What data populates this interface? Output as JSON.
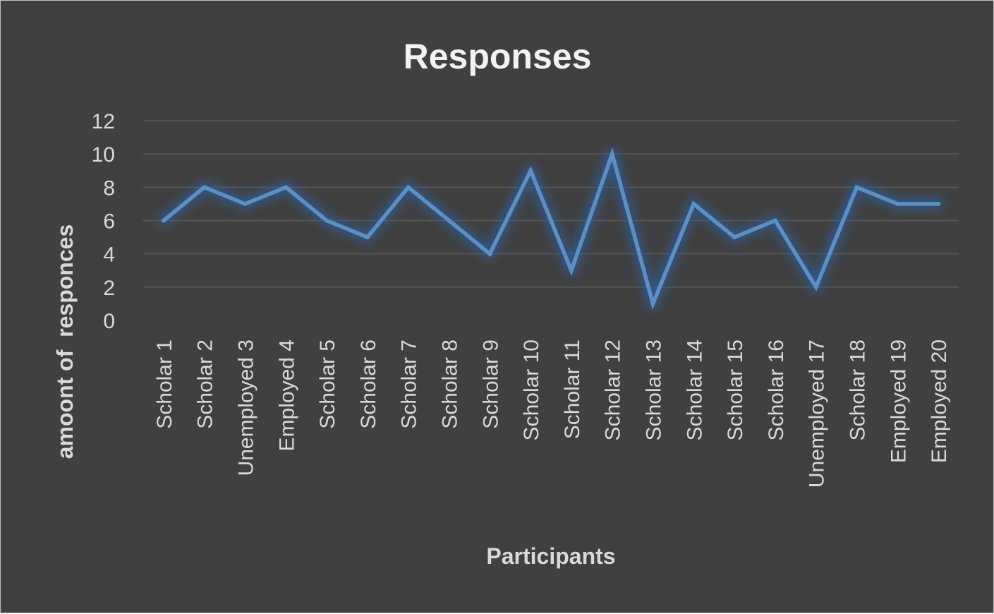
{
  "chart_data": {
    "type": "line",
    "title": "Responses",
    "xlabel": "Participants",
    "ylabel": "amoont of  responces",
    "ylim": [
      0,
      12
    ],
    "yticks": [
      0,
      2,
      4,
      6,
      8,
      10,
      12
    ],
    "grid": true,
    "legend": "none",
    "categories": [
      "Scholar 1",
      "Scholar 2",
      "Unemployed 3",
      "Employed 4",
      "Scholar 5",
      "Scholar 6",
      "Scholar 7",
      "Scholar 8",
      "Scholar 9",
      "Scholar 10",
      "Scholar 11",
      "Scholar 12",
      "Scholar 13",
      "Scholar 14",
      "Scholar 15",
      "Scholar 16",
      "Unemployed 17",
      "Scholar 18",
      "Employed 19",
      "Employed 20"
    ],
    "values": [
      6,
      8,
      7,
      8,
      6,
      5,
      8,
      6,
      4,
      9,
      3,
      10,
      1,
      7,
      5,
      6,
      2,
      8,
      7,
      7
    ]
  },
  "colors": {
    "background": "#404040",
    "line": "#5b8fc9",
    "glow": "#2e5f99",
    "gridline": "#595959",
    "text": "#d9d9d9"
  }
}
